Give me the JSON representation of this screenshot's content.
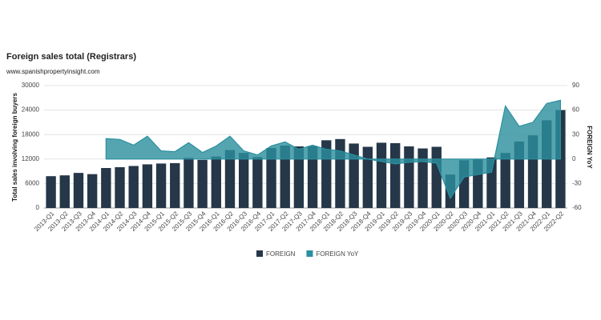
{
  "chart_data": {
    "type": "bar",
    "title": "Foreign sales total (Registrars)",
    "subtitle": "www.spanishpropertyinsight.com",
    "ylabel": "Total sales involving foreign buyers",
    "y2label": "FOREIGN YoY",
    "categories": [
      "2013-Q1",
      "2013-Q2",
      "2013-Q3",
      "2013-Q4",
      "2014-Q1",
      "2014-Q2",
      "2014-Q3",
      "2014-Q4",
      "2015-Q1",
      "2015-Q2",
      "2015-Q3",
      "2015-Q4",
      "2016-Q1",
      "2016-Q2",
      "2016-Q3",
      "2016-Q4",
      "2017-Q1",
      "2017-Q2",
      "2017-Q3",
      "2017-Q4",
      "2018-Q1",
      "2018-Q2",
      "2018-Q3",
      "2018-Q4",
      "2019-Q1",
      "2019-Q2",
      "2019-Q3",
      "2019-Q4",
      "2020-Q1",
      "2020-Q2",
      "2020-Q3",
      "2020-Q4",
      "2021-Q1",
      "2021-Q2",
      "2021-Q3",
      "2021-Q4",
      "2022-Q1",
      "2022-Q2"
    ],
    "series": [
      {
        "name": "FOREIGN",
        "type": "bar",
        "color": "#253748",
        "values": [
          7800,
          8000,
          8600,
          8300,
          9800,
          10000,
          10300,
          10700,
          10900,
          11000,
          12300,
          11800,
          12600,
          14200,
          13500,
          12500,
          14700,
          15300,
          15100,
          15200,
          16600,
          16900,
          15800,
          15000,
          16000,
          15900,
          15100,
          14600,
          15000,
          8200,
          11700,
          12000,
          12400,
          13500,
          16300,
          17800,
          21500,
          24000
        ]
      },
      {
        "name": "FOREIGN YoY",
        "type": "area",
        "axis": "y2",
        "color": "#2a8f9e",
        "values": [
          null,
          null,
          null,
          null,
          25,
          24,
          17,
          28,
          10,
          9,
          20,
          8,
          16,
          28,
          10,
          5,
          16,
          21,
          12,
          17,
          12,
          10,
          5,
          0,
          -3,
          -6,
          -4,
          -3,
          -5,
          -48,
          -22,
          -19,
          -16,
          65,
          40,
          45,
          68,
          72
        ]
      }
    ],
    "ylim": [
      0,
      30000
    ],
    "yticks": [
      0,
      6000,
      12000,
      18000,
      24000,
      30000
    ],
    "y2lim": [
      -60,
      90
    ],
    "y2ticks": [
      -60,
      -30,
      0,
      30,
      60,
      90
    ],
    "grid": true
  }
}
